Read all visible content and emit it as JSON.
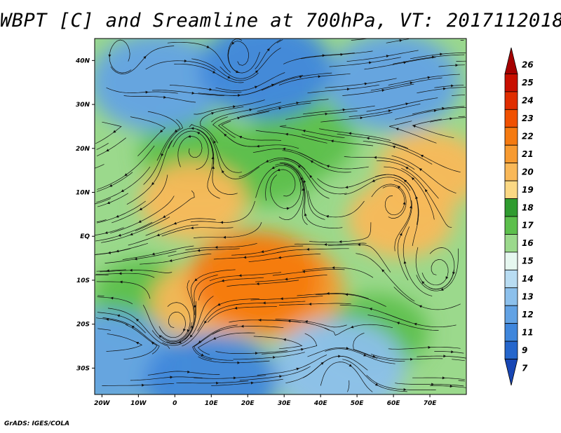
{
  "header": {
    "title": "WBPT [C] and Sreamline at 700hPa, VT: 2017112018"
  },
  "footer": {
    "credit": "GrADS: IGES/COLA"
  },
  "chart_data": {
    "type": "heatmap",
    "title": "WBPT [C] and Sreamline at 700hPa, VT: 2017112018",
    "variable": "WBPT",
    "units": "C",
    "level": "700hPa",
    "valid_time": "2017112018",
    "overlay": "streamlines",
    "xlim": [
      -22,
      80
    ],
    "ylim": [
      -36,
      45
    ],
    "x_ticks": [
      {
        "value": -20,
        "label": "20W"
      },
      {
        "value": -10,
        "label": "10W"
      },
      {
        "value": 0,
        "label": "0"
      },
      {
        "value": 10,
        "label": "10E"
      },
      {
        "value": 20,
        "label": "20E"
      },
      {
        "value": 30,
        "label": "30E"
      },
      {
        "value": 40,
        "label": "40E"
      },
      {
        "value": 50,
        "label": "50E"
      },
      {
        "value": 60,
        "label": "60E"
      },
      {
        "value": 70,
        "label": "70E"
      }
    ],
    "y_ticks": [
      {
        "value": 40,
        "label": "40N"
      },
      {
        "value": 30,
        "label": "30N"
      },
      {
        "value": 20,
        "label": "20N"
      },
      {
        "value": 10,
        "label": "10N"
      },
      {
        "value": 0,
        "label": "EQ"
      },
      {
        "value": -10,
        "label": "10S"
      },
      {
        "value": -20,
        "label": "20S"
      },
      {
        "value": -30,
        "label": "30S"
      }
    ],
    "colorbar": {
      "labels": [
        "26",
        "25",
        "24",
        "23",
        "22",
        "21",
        "20",
        "19",
        "18",
        "17",
        "16",
        "15",
        "14",
        "13",
        "12",
        "11",
        "9",
        "7"
      ],
      "colors": [
        "#a50000",
        "#c80f00",
        "#e02d00",
        "#f05000",
        "#f57a10",
        "#f79a30",
        "#f9b858",
        "#fbd884",
        "#2f9b2f",
        "#5cbf4c",
        "#9bd98c",
        "#e6f7f0",
        "#b8dcf2",
        "#8cc0ec",
        "#62a2e4",
        "#3f86dc",
        "#2566cc",
        "#1846b4"
      ]
    },
    "features": [
      {
        "name": "warm core",
        "value": 22,
        "lon": 22,
        "lat": -10
      },
      {
        "name": "warm core",
        "value": 21,
        "lon": 28,
        "lat": -12
      },
      {
        "name": "warm band",
        "value": 20,
        "lon": 5,
        "lat": 8
      },
      {
        "name": "warm band",
        "value": 20,
        "lon": 8,
        "lat": -15
      },
      {
        "name": "warm band",
        "value": 20,
        "lon": 62,
        "lat": 4
      },
      {
        "name": "warm band",
        "value": 20,
        "lon": 70,
        "lat": 15
      },
      {
        "name": "green belt",
        "value": 17,
        "lon": 5,
        "lat": 19
      },
      {
        "name": "green belt",
        "value": 17,
        "lon": 25,
        "lat": 16
      },
      {
        "name": "green belt",
        "value": 17,
        "lon": 35,
        "lat": 22
      },
      {
        "name": "green belt",
        "value": 17,
        "lon": -8,
        "lat": -14
      },
      {
        "name": "green belt",
        "value": 17,
        "lon": 55,
        "lat": -22
      },
      {
        "name": "cool region",
        "value": 12,
        "lon": -5,
        "lat": 35
      },
      {
        "name": "cool region",
        "value": 11,
        "lon": 25,
        "lat": 38
      },
      {
        "name": "cool region",
        "value": 12,
        "lon": 60,
        "lat": 35
      },
      {
        "name": "cool region",
        "value": 11,
        "lon": 10,
        "lat": -33
      },
      {
        "name": "cool region",
        "value": 13,
        "lon": 45,
        "lat": -30
      },
      {
        "name": "cool region",
        "value": 12,
        "lon": -18,
        "lat": -28
      }
    ]
  }
}
